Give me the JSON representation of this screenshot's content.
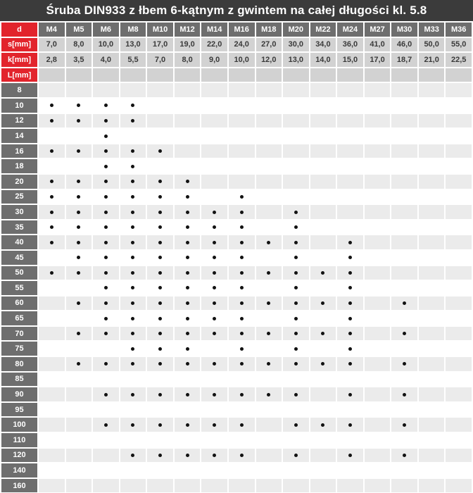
{
  "title": "Śruba DIN933 z łbem 6-kątnym z gwintem na całej długości kl. 5.8",
  "colors": {
    "red": "#e2242c",
    "title_bg": "#3b3b3b",
    "header_dark": "#6e6e6e",
    "header_light": "#d2d2d2",
    "stripe": "#ebebeb",
    "text_dark": "#3a3a3a",
    "dot": "#121212"
  },
  "header": {
    "d_label": "d",
    "s_label": "s[mm]",
    "k_label": "k[mm]",
    "l_label": "L[mm]",
    "sizes": [
      "M4",
      "M5",
      "M6",
      "M8",
      "M10",
      "M12",
      "M14",
      "M16",
      "M18",
      "M20",
      "M22",
      "M24",
      "M27",
      "M30",
      "M33",
      "M36"
    ],
    "s_values": [
      "7,0",
      "8,0",
      "10,0",
      "13,0",
      "17,0",
      "19,0",
      "22,0",
      "24,0",
      "27,0",
      "30,0",
      "34,0",
      "36,0",
      "41,0",
      "46,0",
      "50,0",
      "55,0"
    ],
    "k_values": [
      "2,8",
      "3,5",
      "4,0",
      "5,5",
      "7,0",
      "8,0",
      "9,0",
      "10,0",
      "12,0",
      "13,0",
      "14,0",
      "15,0",
      "17,0",
      "18,7",
      "21,0",
      "22,5"
    ]
  },
  "rows": [
    {
      "L": "8",
      "dots": []
    },
    {
      "L": "10",
      "dots": [
        "M4",
        "M5",
        "M6",
        "M8"
      ]
    },
    {
      "L": "12",
      "dots": [
        "M4",
        "M5",
        "M6",
        "M8"
      ]
    },
    {
      "L": "14",
      "dots": [
        "M6"
      ]
    },
    {
      "L": "16",
      "dots": [
        "M4",
        "M5",
        "M6",
        "M8",
        "M10"
      ]
    },
    {
      "L": "18",
      "dots": [
        "M6",
        "M8"
      ]
    },
    {
      "L": "20",
      "dots": [
        "M4",
        "M5",
        "M6",
        "M8",
        "M10",
        "M12"
      ]
    },
    {
      "L": "25",
      "dots": [
        "M4",
        "M5",
        "M6",
        "M8",
        "M10",
        "M12",
        "M16"
      ]
    },
    {
      "L": "30",
      "dots": [
        "M4",
        "M5",
        "M6",
        "M8",
        "M10",
        "M12",
        "M14",
        "M16",
        "M20"
      ]
    },
    {
      "L": "35",
      "dots": [
        "M4",
        "M5",
        "M6",
        "M8",
        "M10",
        "M12",
        "M14",
        "M16",
        "M20"
      ]
    },
    {
      "L": "40",
      "dots": [
        "M4",
        "M5",
        "M6",
        "M8",
        "M10",
        "M12",
        "M14",
        "M16",
        "M18",
        "M20",
        "M24"
      ]
    },
    {
      "L": "45",
      "dots": [
        "M5",
        "M6",
        "M8",
        "M10",
        "M12",
        "M14",
        "M16",
        "M20",
        "M24"
      ]
    },
    {
      "L": "50",
      "dots": [
        "M4",
        "M5",
        "M6",
        "M8",
        "M10",
        "M12",
        "M14",
        "M16",
        "M18",
        "M20",
        "M22",
        "M24"
      ]
    },
    {
      "L": "55",
      "dots": [
        "M6",
        "M8",
        "M10",
        "M12",
        "M14",
        "M16",
        "M20",
        "M24"
      ]
    },
    {
      "L": "60",
      "dots": [
        "M5",
        "M6",
        "M8",
        "M10",
        "M12",
        "M14",
        "M16",
        "M18",
        "M20",
        "M22",
        "M24",
        "M30"
      ]
    },
    {
      "L": "65",
      "dots": [
        "M6",
        "M8",
        "M10",
        "M12",
        "M14",
        "M16",
        "M20",
        "M24"
      ]
    },
    {
      "L": "70",
      "dots": [
        "M5",
        "M6",
        "M8",
        "M10",
        "M12",
        "M14",
        "M16",
        "M18",
        "M20",
        "M22",
        "M24",
        "M30"
      ]
    },
    {
      "L": "75",
      "dots": [
        "M8",
        "M10",
        "M12",
        "M16",
        "M20",
        "M24"
      ]
    },
    {
      "L": "80",
      "dots": [
        "M5",
        "M6",
        "M8",
        "M10",
        "M12",
        "M14",
        "M16",
        "M18",
        "M20",
        "M22",
        "M24",
        "M30"
      ]
    },
    {
      "L": "85",
      "dots": []
    },
    {
      "L": "90",
      "dots": [
        "M6",
        "M8",
        "M10",
        "M12",
        "M14",
        "M16",
        "M18",
        "M20",
        "M24",
        "M30"
      ]
    },
    {
      "L": "95",
      "dots": []
    },
    {
      "L": "100",
      "dots": [
        "M6",
        "M8",
        "M10",
        "M12",
        "M14",
        "M16",
        "M20",
        "M22",
        "M24",
        "M30"
      ]
    },
    {
      "L": "110",
      "dots": []
    },
    {
      "L": "120",
      "dots": [
        "M8",
        "M10",
        "M12",
        "M14",
        "M16",
        "M20",
        "M24",
        "M30"
      ]
    },
    {
      "L": "140",
      "dots": []
    },
    {
      "L": "160",
      "dots": []
    }
  ]
}
